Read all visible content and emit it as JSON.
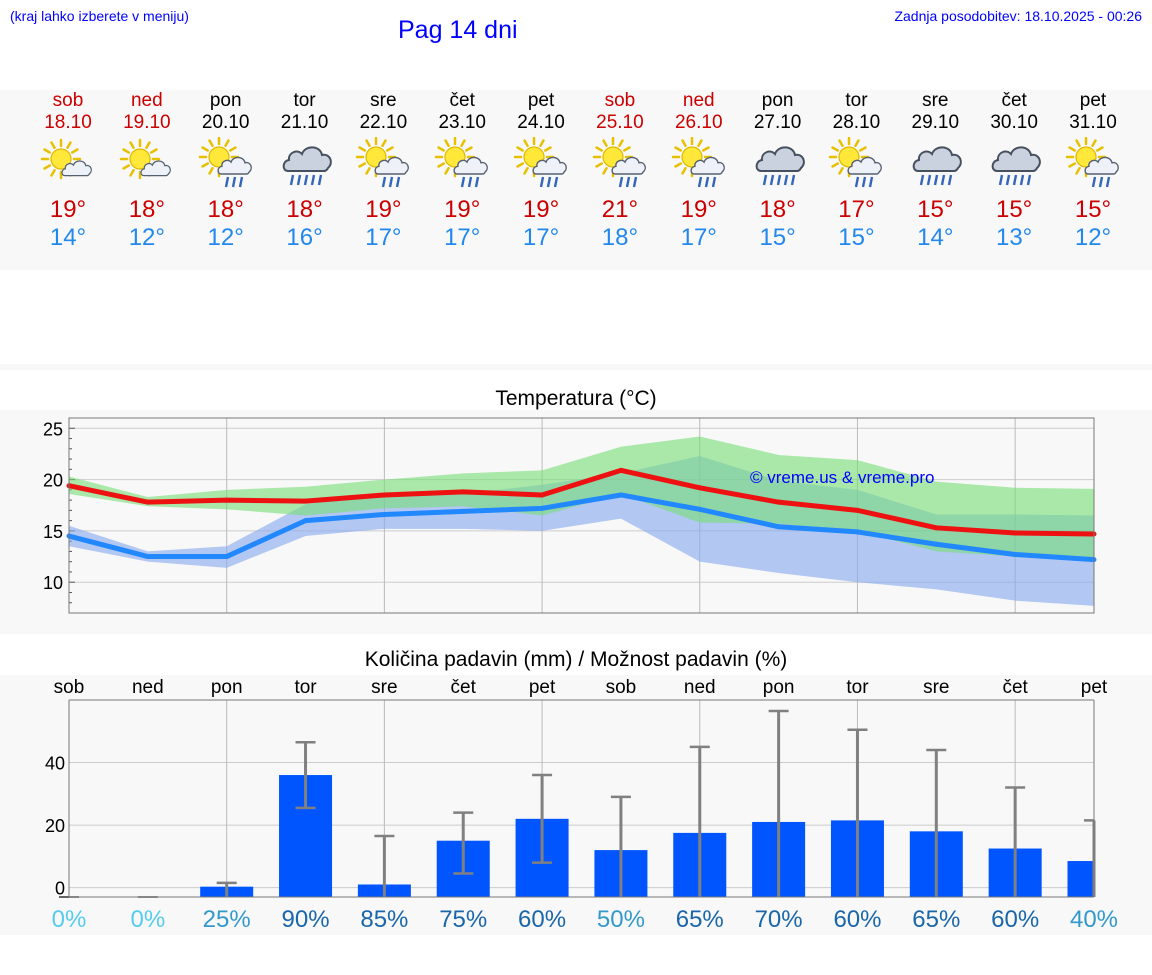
{
  "header": {
    "choose_text": "(kraj lahko izberete v meniju)",
    "title": "Pag 14 dni",
    "updated": "Zadnja posodobitev: 18.10.2025 - 00:26"
  },
  "colors": {
    "weekend": "#cc0000",
    "weekday": "#000000",
    "tmax": "#cc0000",
    "tmin": "#2288ee",
    "max_line": "#ee1111",
    "min_line": "#2288ff",
    "max_band": "#77dd77",
    "min_band": "#88aaee",
    "bar": "#0055ff",
    "error": "#808080",
    "watermark": "#0000ff"
  },
  "days": [
    {
      "name": "sob",
      "date": "18.10",
      "weekend": true,
      "icon": "sun-cloud-icon",
      "tmax": "19°",
      "tmin": "14°"
    },
    {
      "name": "ned",
      "date": "19.10",
      "weekend": true,
      "icon": "sun-cloud-icon",
      "tmax": "18°",
      "tmin": "12°"
    },
    {
      "name": "pon",
      "date": "20.10",
      "weekend": false,
      "icon": "sun-cloud-rain-icon",
      "tmax": "18°",
      "tmin": "12°"
    },
    {
      "name": "tor",
      "date": "21.10",
      "weekend": false,
      "icon": "cloud-rain-icon",
      "tmax": "18°",
      "tmin": "16°"
    },
    {
      "name": "sre",
      "date": "22.10",
      "weekend": false,
      "icon": "sun-cloud-rain-icon",
      "tmax": "19°",
      "tmin": "17°"
    },
    {
      "name": "čet",
      "date": "23.10",
      "weekend": false,
      "icon": "sun-cloud-rain-icon",
      "tmax": "19°",
      "tmin": "17°"
    },
    {
      "name": "pet",
      "date": "24.10",
      "weekend": false,
      "icon": "sun-cloud-rain-icon",
      "tmax": "19°",
      "tmin": "17°"
    },
    {
      "name": "sob",
      "date": "25.10",
      "weekend": true,
      "icon": "sun-cloud-rain-icon",
      "tmax": "21°",
      "tmin": "18°"
    },
    {
      "name": "ned",
      "date": "26.10",
      "weekend": true,
      "icon": "sun-cloud-rain-icon",
      "tmax": "19°",
      "tmin": "17°"
    },
    {
      "name": "pon",
      "date": "27.10",
      "weekend": false,
      "icon": "cloud-rain-icon",
      "tmax": "18°",
      "tmin": "15°"
    },
    {
      "name": "tor",
      "date": "28.10",
      "weekend": false,
      "icon": "sun-cloud-rain-icon",
      "tmax": "17°",
      "tmin": "15°"
    },
    {
      "name": "sre",
      "date": "29.10",
      "weekend": false,
      "icon": "cloud-rain-icon",
      "tmax": "15°",
      "tmin": "14°"
    },
    {
      "name": "čet",
      "date": "30.10",
      "weekend": false,
      "icon": "cloud-rain-icon",
      "tmax": "15°",
      "tmin": "13°"
    },
    {
      "name": "pet",
      "date": "31.10",
      "weekend": false,
      "icon": "sun-cloud-rain-icon",
      "tmax": "15°",
      "tmin": "12°"
    }
  ],
  "chart_data": [
    {
      "type": "line",
      "title": "Temperatura (°C)",
      "watermark": "© vreme.us & vreme.pro",
      "x": [
        0,
        1,
        2,
        3,
        4,
        5,
        6,
        7,
        8,
        9,
        10,
        11,
        12,
        13
      ],
      "ylim": [
        7,
        26
      ],
      "yticks": [
        10,
        15,
        20,
        25
      ],
      "grid": true,
      "series": [
        {
          "name": "max",
          "values": [
            19.4,
            17.8,
            18.0,
            17.9,
            18.5,
            18.8,
            18.5,
            20.9,
            19.2,
            17.8,
            17.0,
            15.3,
            14.8,
            14.7
          ],
          "band_high": [
            20.3,
            18.3,
            19.0,
            19.3,
            20.0,
            20.6,
            20.9,
            23.2,
            24.2,
            22.4,
            21.9,
            19.8,
            19.2,
            19.1
          ],
          "band_low": [
            18.6,
            17.4,
            17.1,
            16.5,
            17.2,
            17.4,
            16.5,
            18.6,
            15.8,
            15.7,
            15.0,
            13.0,
            12.5,
            12.2
          ]
        },
        {
          "name": "min",
          "values": [
            14.5,
            12.5,
            12.5,
            16.0,
            16.6,
            16.9,
            17.2,
            18.5,
            17.1,
            15.4,
            14.9,
            13.7,
            12.7,
            12.2
          ],
          "band_high": [
            15.5,
            13.0,
            13.5,
            17.6,
            18.6,
            18.6,
            19.5,
            20.6,
            22.3,
            19.9,
            19.0,
            16.6,
            16.6,
            16.5
          ],
          "band_low": [
            13.5,
            12.0,
            11.4,
            14.5,
            15.2,
            15.2,
            15.0,
            16.2,
            12.0,
            10.9,
            10.0,
            9.3,
            8.2,
            7.7
          ]
        }
      ]
    },
    {
      "type": "bar",
      "title": "Količina padavin (mm) / Možnost padavin (%)",
      "categories": [
        "sob",
        "ned",
        "pon",
        "tor",
        "sre",
        "čet",
        "pet",
        "sob",
        "ned",
        "pon",
        "tor",
        "sre",
        "čet",
        "pet"
      ],
      "ylim": [
        -3,
        60
      ],
      "yticks": [
        0,
        20,
        40
      ],
      "values": [
        0,
        0,
        0.3,
        36,
        1,
        15,
        22,
        12,
        17.5,
        21,
        21.5,
        18,
        12.5,
        8.5
      ],
      "error_low": [
        0,
        0,
        0,
        25.5,
        0,
        4.5,
        8,
        0,
        0,
        0,
        0,
        0,
        0,
        0
      ],
      "error_high": [
        0,
        0,
        1.5,
        46.5,
        16.5,
        24,
        36,
        29,
        45,
        56.5,
        50.5,
        44,
        32,
        21.5
      ],
      "probabilities": [
        "0%",
        "0%",
        "25%",
        "90%",
        "85%",
        "75%",
        "60%",
        "50%",
        "65%",
        "70%",
        "60%",
        "65%",
        "60%",
        "40%"
      ],
      "probability_colors": [
        "#55ccee",
        "#55ccee",
        "#3399cc",
        "#1a66aa",
        "#1a66aa",
        "#1a66aa",
        "#1a66aa",
        "#3399cc",
        "#1a66aa",
        "#1a66aa",
        "#1a66aa",
        "#1a66aa",
        "#1a66aa",
        "#3399cc"
      ]
    }
  ]
}
